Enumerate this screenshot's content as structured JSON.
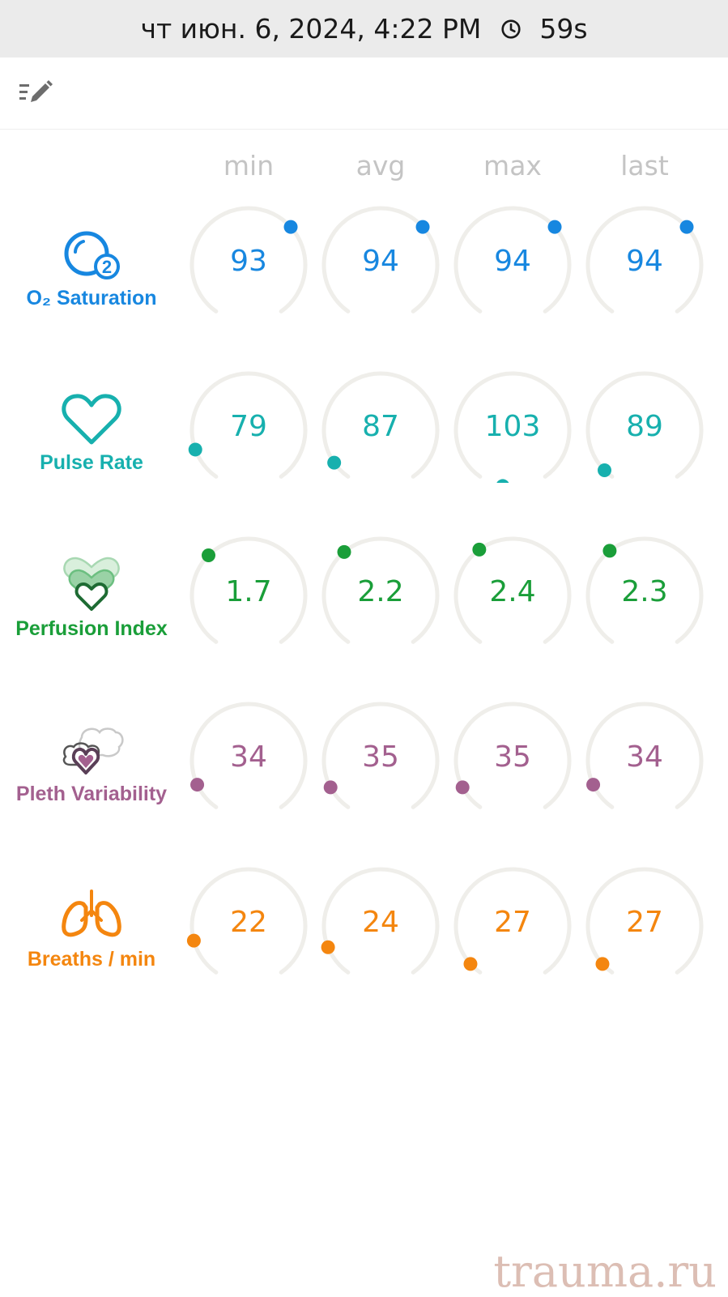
{
  "status_bar": {
    "datetime": "чт июн. 6, 2024, 4:22 PM",
    "timer": "59s",
    "clock_icon": "clock-icon"
  },
  "toolbar": {
    "edit_icon": "edit-list-icon"
  },
  "columns": [
    "min",
    "avg",
    "max",
    "last"
  ],
  "rows": [
    {
      "key": "o2",
      "label": "O₂ Saturation",
      "color": "#1787e0",
      "icon": "o2-saturation-icon",
      "values": [
        "93",
        "94",
        "94",
        "94"
      ],
      "dot_angle": [
        48,
        48,
        48,
        48
      ]
    },
    {
      "key": "pulse",
      "label": "Pulse Rate",
      "color": "#17b0ae",
      "icon": "heart-icon",
      "values": [
        "79",
        "87",
        "103",
        "89"
      ],
      "dot_angle": [
        -110,
        -125,
        -170,
        -135
      ]
    },
    {
      "key": "pi",
      "label": "Perfusion Index",
      "color": "#1a9e39",
      "icon": "perfusion-index-icon",
      "values": [
        "1.7",
        "2.2",
        "2.4",
        "2.3"
      ],
      "dot_angle": [
        -45,
        -40,
        -36,
        -38
      ]
    },
    {
      "key": "pvi",
      "label": "Pleth Variability",
      "color": "#a3608f",
      "icon": "pleth-variability-icon",
      "values": [
        "34",
        "35",
        "35",
        "34"
      ],
      "dot_angle": [
        -115,
        -118,
        -118,
        -115
      ]
    },
    {
      "key": "rr",
      "label": "Breaths / min",
      "color": "#f4860f",
      "icon": "lungs-icon",
      "values": [
        "22",
        "24",
        "27",
        "27"
      ],
      "dot_angle": [
        -105,
        -112,
        -132,
        -132
      ]
    }
  ],
  "watermark": "trauma.ru"
}
